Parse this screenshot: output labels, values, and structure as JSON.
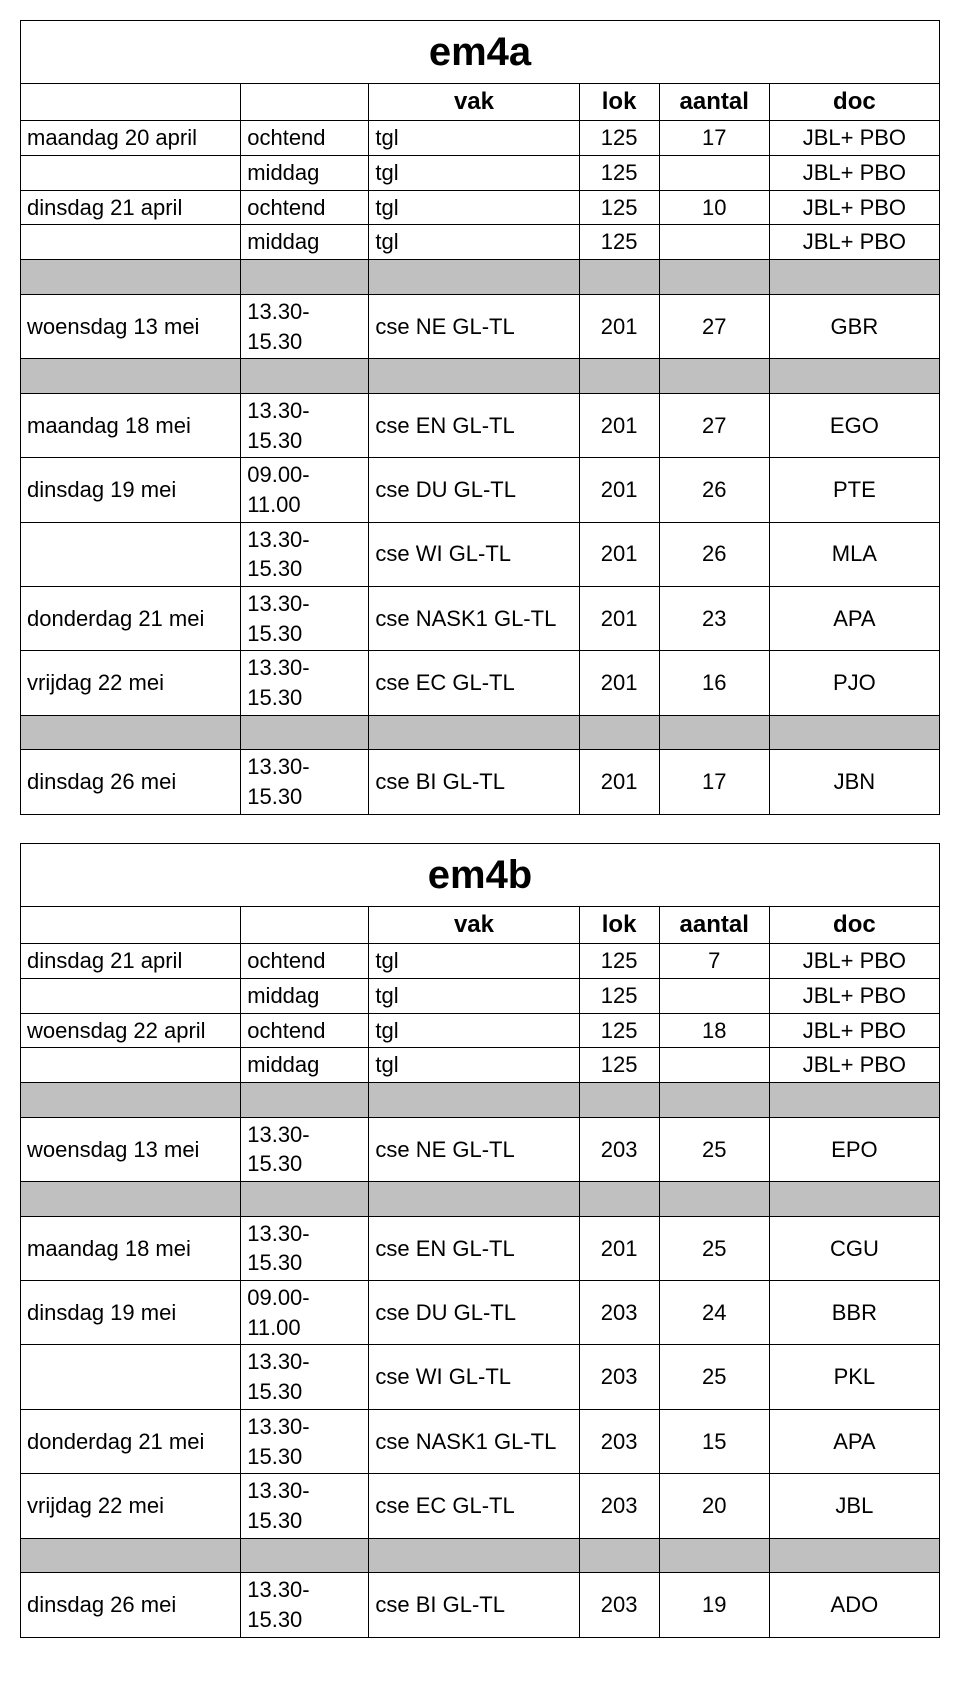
{
  "colors": {
    "grey": "#c0c0c0",
    "border": "#000000",
    "bg": "#ffffff"
  },
  "font": {
    "family": "Century Gothic",
    "title_size_pt": 30,
    "body_size_pt": 16
  },
  "tables": [
    {
      "title": "em4a",
      "columns": [
        "",
        "",
        "vak",
        "lok",
        "aantal",
        "doc"
      ],
      "rows": [
        {
          "cells": [
            "maandag 20 april",
            "ochtend",
            "tgl",
            "125",
            "17",
            "JBL+ PBO"
          ]
        },
        {
          "cells": [
            "",
            "middag",
            "tgl",
            "125",
            "",
            "JBL+ PBO"
          ]
        },
        {
          "cells": [
            "dinsdag 21 april",
            "ochtend",
            "tgl",
            "125",
            "10",
            "JBL+ PBO"
          ]
        },
        {
          "cells": [
            "",
            "middag",
            "tgl",
            "125",
            "",
            "JBL+ PBO"
          ]
        },
        {
          "grey": true
        },
        {
          "cells": [
            "woensdag 13 mei",
            "13.30-15.30",
            "cse NE GL-TL",
            "201",
            "27",
            "GBR"
          ]
        },
        {
          "grey": true
        },
        {
          "cells": [
            "maandag 18 mei",
            "13.30-15.30",
            "cse EN GL-TL",
            "201",
            "27",
            "EGO"
          ]
        },
        {
          "cells": [
            "dinsdag 19 mei",
            "09.00-11.00",
            "cse DU GL-TL",
            "201",
            "26",
            "PTE"
          ]
        },
        {
          "cells": [
            "",
            "13.30-15.30",
            "cse WI GL-TL",
            "201",
            "26",
            "MLA"
          ]
        },
        {
          "cells": [
            "donderdag 21 mei",
            "13.30-15.30",
            "cse NASK1 GL-TL",
            "201",
            "23",
            "APA"
          ]
        },
        {
          "cells": [
            "vrijdag 22 mei",
            "13.30-15.30",
            "cse EC GL-TL",
            "201",
            "16",
            "PJO"
          ]
        },
        {
          "grey": true
        },
        {
          "cells": [
            "dinsdag 26 mei",
            "13.30-15.30",
            "cse BI GL-TL",
            "201",
            "17",
            "JBN"
          ]
        }
      ]
    },
    {
      "title": "em4b",
      "columns": [
        "",
        "",
        "vak",
        "lok",
        "aantal",
        "doc"
      ],
      "rows": [
        {
          "cells": [
            "dinsdag 21 april",
            "ochtend",
            "tgl",
            "125",
            "7",
            "JBL+ PBO"
          ]
        },
        {
          "cells": [
            "",
            "middag",
            "tgl",
            "125",
            "",
            "JBL+ PBO"
          ]
        },
        {
          "cells": [
            "woensdag 22 april",
            "ochtend",
            "tgl",
            "125",
            "18",
            "JBL+ PBO"
          ]
        },
        {
          "cells": [
            "",
            "middag",
            "tgl",
            "125",
            "",
            "JBL+ PBO"
          ]
        },
        {
          "grey": true
        },
        {
          "cells": [
            "woensdag 13 mei",
            "13.30-15.30",
            "cse NE GL-TL",
            "203",
            "25",
            "EPO"
          ]
        },
        {
          "grey": true
        },
        {
          "cells": [
            "maandag 18 mei",
            "13.30-15.30",
            "cse EN GL-TL",
            "201",
            "25",
            "CGU"
          ]
        },
        {
          "cells": [
            "dinsdag 19 mei",
            "09.00-11.00",
            "cse DU GL-TL",
            "203",
            "24",
            "BBR"
          ]
        },
        {
          "cells": [
            "",
            "13.30-15.30",
            "cse WI GL-TL",
            "203",
            "25",
            "PKL"
          ]
        },
        {
          "cells": [
            "donderdag 21 mei",
            "13.30-15.30",
            "cse NASK1 GL-TL",
            "203",
            "15",
            "APA"
          ]
        },
        {
          "cells": [
            "vrijdag 22 mei",
            "13.30-15.30",
            "cse EC GL-TL",
            "203",
            "20",
            "JBL"
          ]
        },
        {
          "grey": true
        },
        {
          "cells": [
            "dinsdag 26 mei",
            "13.30-15.30",
            "cse BI GL-TL",
            "203",
            "19",
            "ADO"
          ]
        }
      ]
    }
  ]
}
